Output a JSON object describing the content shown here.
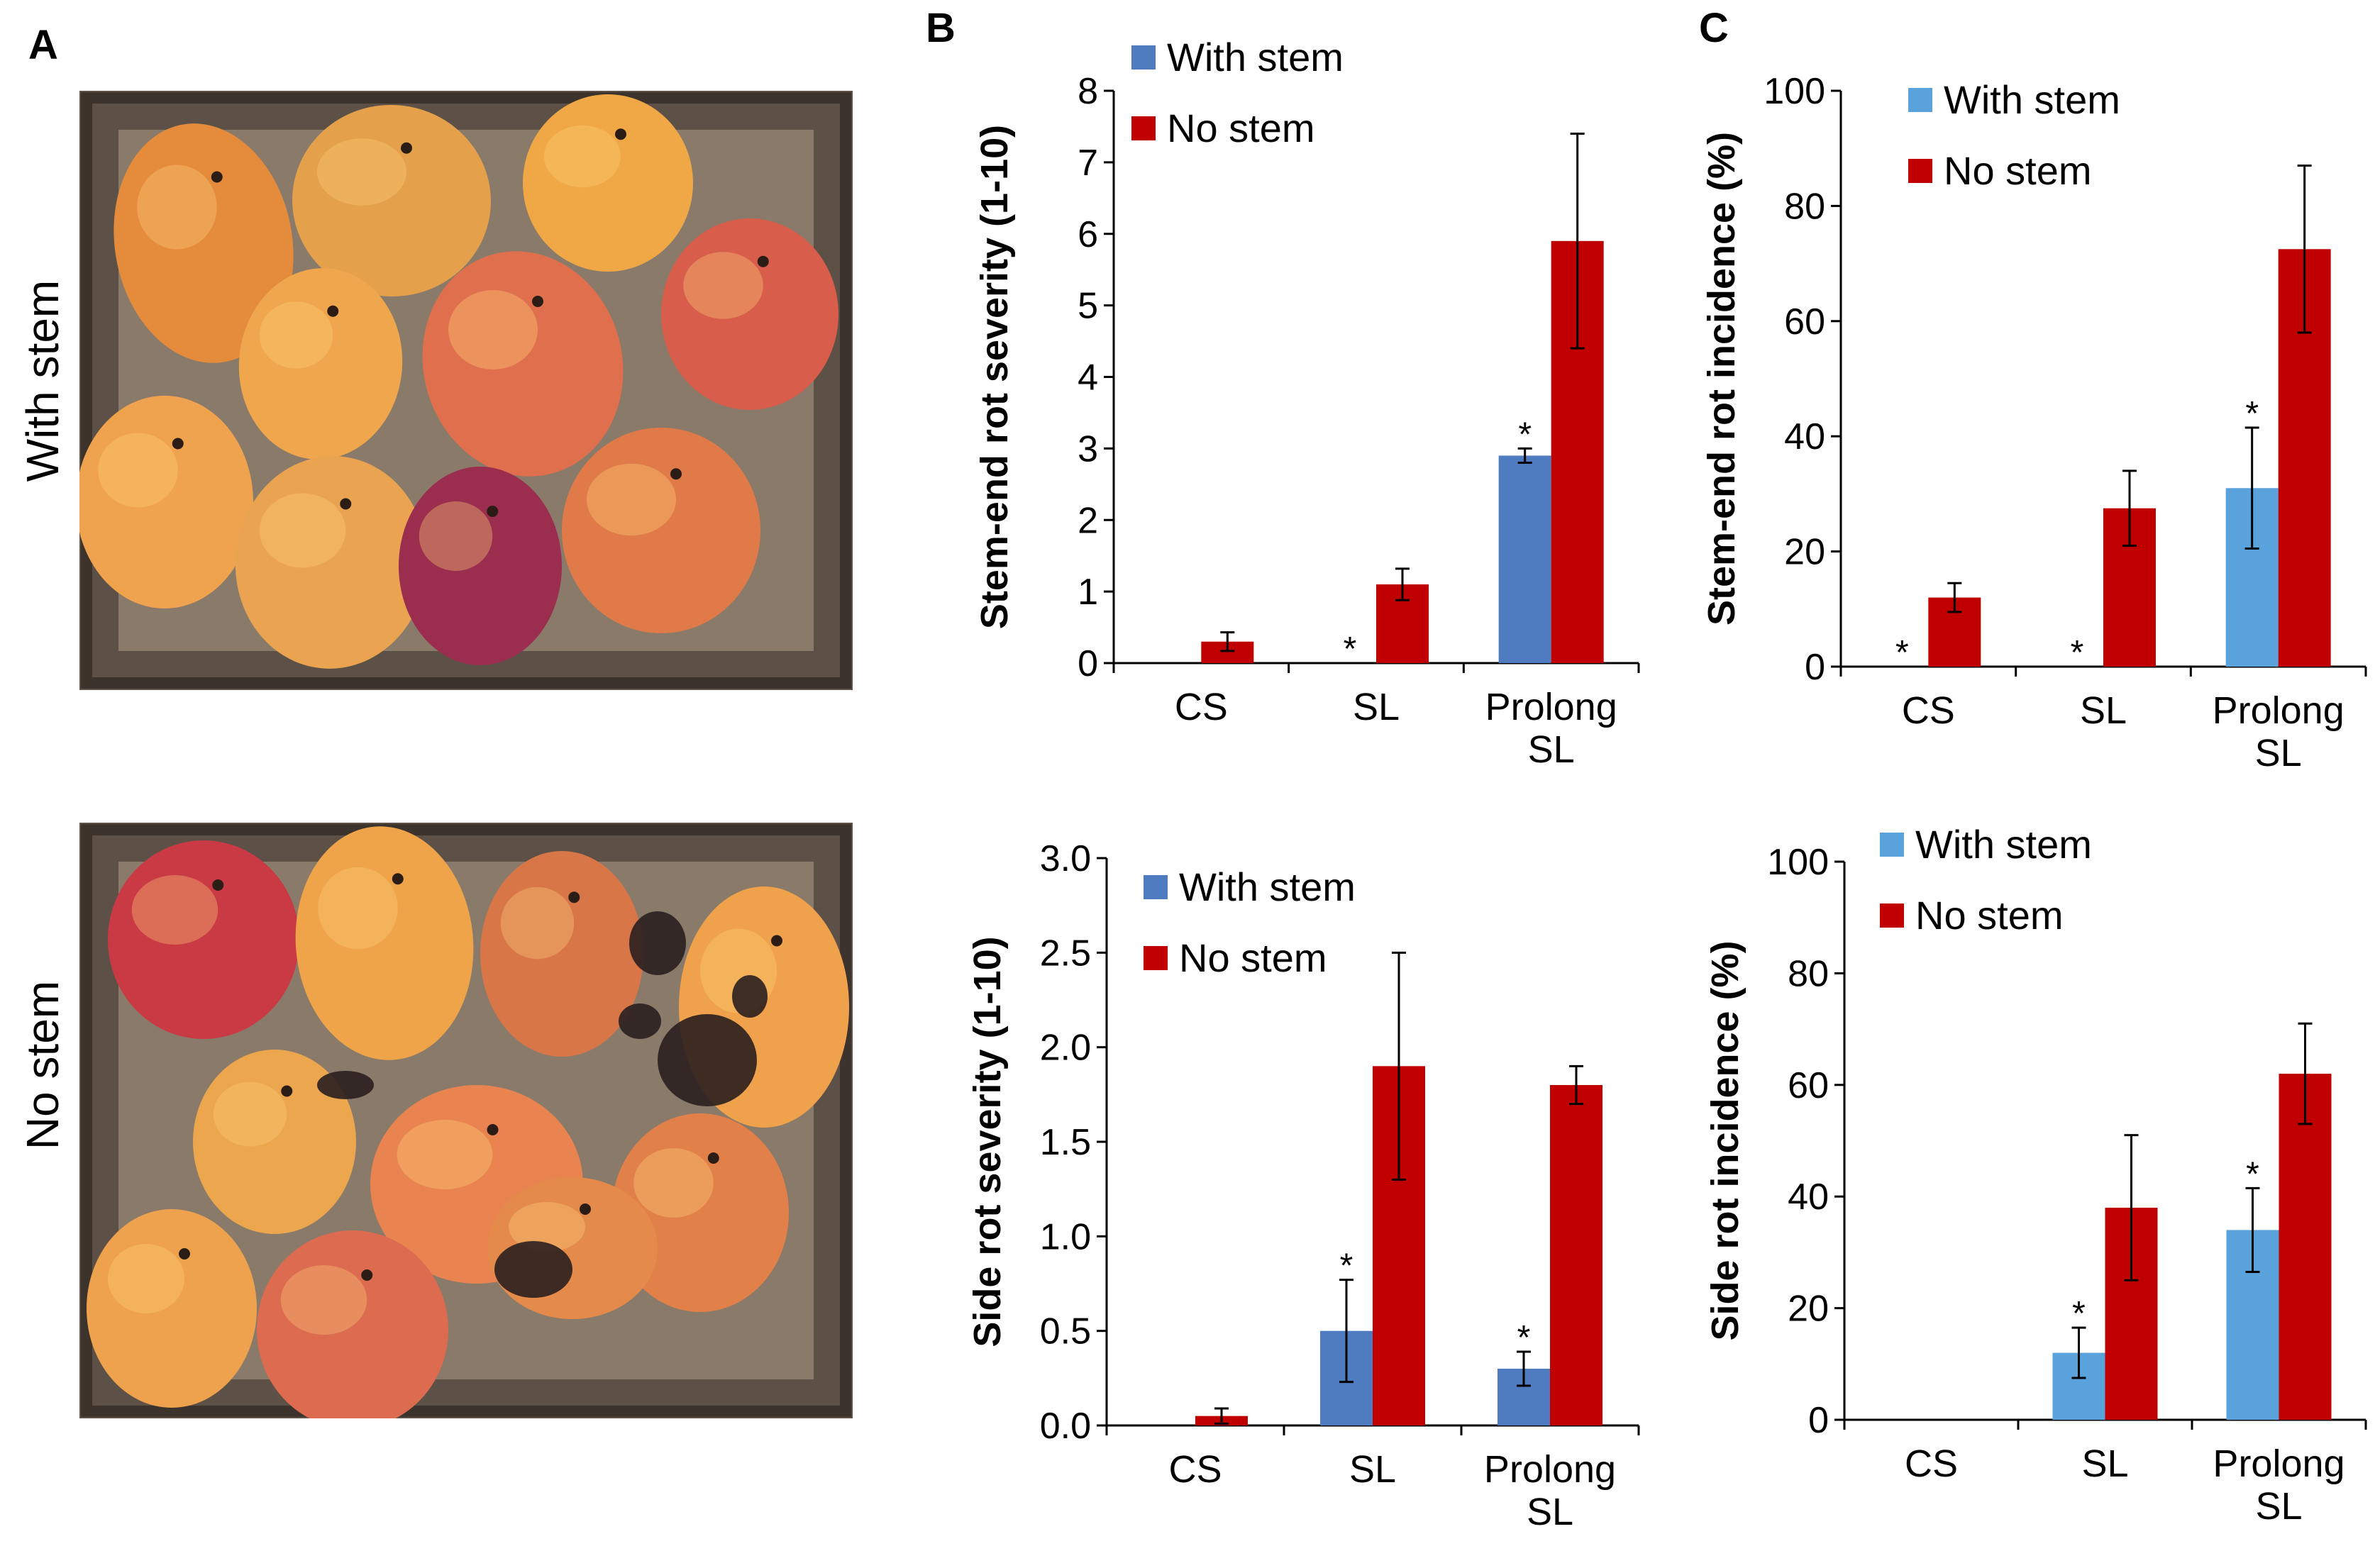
{
  "panel_labels": {
    "a": "A",
    "b": "B",
    "c": "C"
  },
  "photos": [
    {
      "row_label": "With stem",
      "fruit_colors": [
        "#e58b3c",
        "#e4a04b",
        "#f0a846",
        "#d85d4a",
        "#efa64c",
        "#e0704d",
        "#f0a34e",
        "#eaa451",
        "#9b2e4e",
        "#e07a48"
      ]
    },
    {
      "row_label": "No stem",
      "fruit_colors": [
        "#c93a45",
        "#efa44a",
        "#d87648",
        "#efa24b",
        "#eca64e",
        "#e98450",
        "#e2804a",
        "#eea24d",
        "#dc6b4f",
        "#e48a4a"
      ]
    }
  ],
  "legend": {
    "with_stem": "With stem",
    "no_stem": "No stem"
  },
  "colors": {
    "with_stem_b": "#4f7cc0",
    "with_stem_c": "#5aa2dc",
    "no_stem": "#c00000"
  },
  "significance_marker": "*",
  "chart_data": [
    {
      "id": "b-top",
      "type": "bar",
      "title": "",
      "categories": [
        "CS",
        "SL",
        "Prolong SL"
      ],
      "category_lines": [
        [
          "CS"
        ],
        [
          "SL"
        ],
        [
          "Prolong",
          "SL"
        ]
      ],
      "ylabel": "Stem-end rot severity (1-10)",
      "xlabel": "",
      "ylim": [
        0,
        8
      ],
      "yticks": [
        0,
        1,
        2,
        3,
        4,
        5,
        6,
        7,
        8
      ],
      "tick_labels": [
        "0",
        "1",
        "2",
        "3",
        "4",
        "5",
        "6",
        "7",
        "8"
      ],
      "series": [
        {
          "name": "With stem",
          "values": [
            0,
            0,
            2.9
          ],
          "errors": [
            0,
            0,
            0.1
          ],
          "significant": [
            false,
            true,
            true
          ]
        },
        {
          "name": "No stem",
          "values": [
            0.3,
            1.1,
            5.9
          ],
          "errors": [
            0.13,
            0.22,
            1.5
          ],
          "significant": [
            false,
            false,
            false
          ]
        }
      ]
    },
    {
      "id": "c-top",
      "type": "bar",
      "title": "",
      "categories": [
        "CS",
        "SL",
        "Prolong SL"
      ],
      "category_lines": [
        [
          "CS"
        ],
        [
          "SL"
        ],
        [
          "Prolong",
          "SL"
        ]
      ],
      "ylabel": "Stem-end rot incidence (%)",
      "xlabel": "",
      "ylim": [
        0,
        100
      ],
      "yticks": [
        0,
        20,
        40,
        60,
        80,
        100
      ],
      "tick_labels": [
        "0",
        "20",
        "40",
        "60",
        "80",
        "100"
      ],
      "series": [
        {
          "name": "With stem",
          "values": [
            0,
            0,
            31
          ],
          "errors": [
            0,
            0,
            10.5
          ],
          "significant": [
            true,
            true,
            true
          ]
        },
        {
          "name": "No stem",
          "values": [
            12,
            27.5,
            72.5
          ],
          "errors": [
            2.5,
            6.5,
            14.5
          ],
          "significant": [
            false,
            false,
            false
          ]
        }
      ]
    },
    {
      "id": "b-bottom",
      "type": "bar",
      "title": "",
      "categories": [
        "CS",
        "SL",
        "Prolong SL"
      ],
      "category_lines": [
        [
          "CS"
        ],
        [
          "SL"
        ],
        [
          "Prolong",
          "SL"
        ]
      ],
      "ylabel": "Side rot severity (1-10)",
      "xlabel": "",
      "ylim": [
        0,
        3
      ],
      "yticks": [
        0,
        0.5,
        1,
        1.5,
        2,
        2.5,
        3
      ],
      "tick_labels": [
        "0.0",
        "0.5",
        "1.0",
        "1.5",
        "2.0",
        "2.5",
        "3.0"
      ],
      "series": [
        {
          "name": "With stem",
          "values": [
            0,
            0.5,
            0.3
          ],
          "errors": [
            0,
            0.27,
            0.09
          ],
          "significant": [
            false,
            true,
            true
          ]
        },
        {
          "name": "No stem",
          "values": [
            0.05,
            1.9,
            1.8
          ],
          "errors": [
            0.04,
            0.6,
            0.1
          ],
          "significant": [
            false,
            false,
            false
          ]
        }
      ]
    },
    {
      "id": "c-bottom",
      "type": "bar",
      "title": "",
      "categories": [
        "CS",
        "SL",
        "Prolong SL"
      ],
      "category_lines": [
        [
          "CS"
        ],
        [
          "SL"
        ],
        [
          "Prolong",
          "SL"
        ]
      ],
      "ylabel": "Side rot incidence (%)",
      "xlabel": "",
      "ylim": [
        0,
        100
      ],
      "yticks": [
        0,
        20,
        40,
        60,
        80,
        100
      ],
      "tick_labels": [
        "0",
        "20",
        "40",
        "60",
        "80",
        "100"
      ],
      "series": [
        {
          "name": "With stem",
          "values": [
            0,
            12,
            34
          ],
          "errors": [
            0,
            4.5,
            7.5
          ],
          "significant": [
            false,
            true,
            true
          ]
        },
        {
          "name": "No stem",
          "values": [
            0,
            38,
            62
          ],
          "errors": [
            0,
            13,
            9
          ],
          "significant": [
            false,
            false,
            false
          ]
        }
      ]
    }
  ]
}
